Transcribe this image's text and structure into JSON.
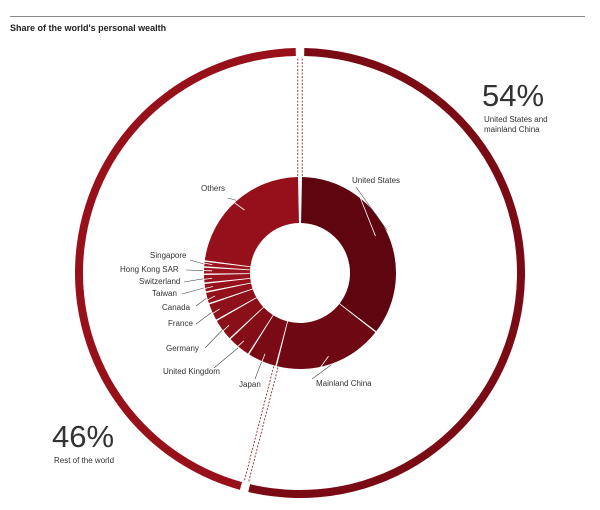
{
  "chart_data": {
    "type": "pie",
    "title": "Share of the world's personal wealth",
    "outer_ring": [
      {
        "name": "United States and mainland China",
        "value": 54,
        "label": "54%",
        "caption": "United States and\nmainland China",
        "color": "#7a0b14"
      },
      {
        "name": "Rest of the world",
        "value": 46,
        "label": "46%",
        "caption": "Rest of the world",
        "color": "#98101a"
      }
    ],
    "inner_ring": [
      {
        "name": "United States",
        "value": 35.5,
        "color": "#5e0510"
      },
      {
        "name": "Mainland China",
        "value": 18.5,
        "color": "#6e0812"
      },
      {
        "name": "Japan",
        "value": 5.0,
        "color": "#7a0b14"
      },
      {
        "name": "United Kingdom",
        "value": 4.0,
        "color": "#840d17"
      },
      {
        "name": "Germany",
        "value": 3.8,
        "color": "#8a0f19"
      },
      {
        "name": "France",
        "value": 3.0,
        "color": "#8e101a"
      },
      {
        "name": "Canada",
        "value": 2.0,
        "color": "#92111b"
      },
      {
        "name": "Taiwan",
        "value": 1.5,
        "color": "#96121c"
      },
      {
        "name": "Switzerland",
        "value": 1.5,
        "color": "#98131d"
      },
      {
        "name": "Hong Kong SAR",
        "value": 1.2,
        "color": "#9a141e"
      },
      {
        "name": "Singapore",
        "value": 1.0,
        "color": "#9c151f"
      },
      {
        "name": "Others",
        "value": 23.0,
        "color": "#96101c"
      }
    ]
  }
}
